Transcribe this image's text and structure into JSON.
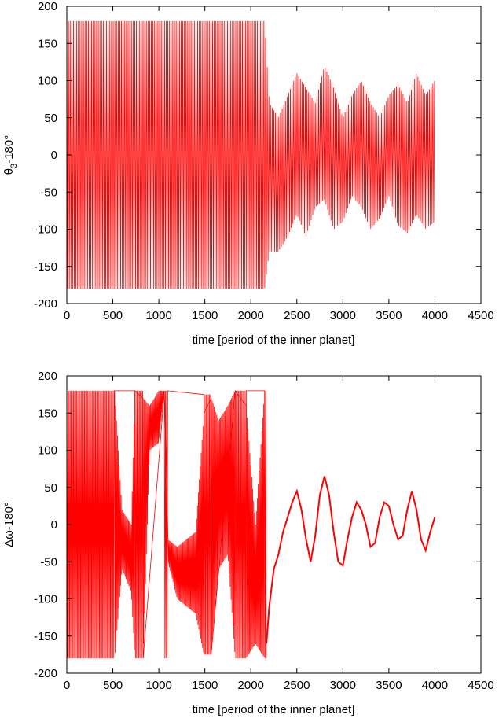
{
  "colors": {
    "series": "#ff0000",
    "axis": "#000000",
    "background": "#ffffff"
  },
  "chart_data": [
    {
      "type": "line",
      "title": "",
      "xlabel": "time [period of the inner planet]",
      "ylabel": {
        "base": "θ",
        "sub": "3",
        "rest": "-180°"
      },
      "xlim": [
        0,
        4500
      ],
      "ylim": [
        -200,
        200
      ],
      "grid": false,
      "legend": "none",
      "xticks": [
        "0",
        "500",
        "1000",
        "1500",
        "2000",
        "2500",
        "3000",
        "3500",
        "4000",
        "4500"
      ],
      "yticks": [
        "200",
        "150",
        "100",
        "50",
        "0",
        "-50",
        "-100",
        "-150",
        "-200"
      ],
      "series": [
        {
          "description_note": "circulating -180..180 until ~2150, then librating",
          "envelope_upper": {
            "x": [
              0,
              2100,
              2150,
              2200,
              2300,
              2400,
              2500,
              2600,
              2700,
              2800,
              2900,
              3000,
              3100,
              3200,
              3300,
              3400,
              3500,
              3600,
              3700,
              3800,
              3900,
              4000
            ],
            "y": [
              180,
              180,
              180,
              70,
              50,
              80,
              110,
              90,
              70,
              120,
              90,
              50,
              80,
              100,
              70,
              50,
              80,
              95,
              70,
              110,
              80,
              100
            ]
          },
          "envelope_lower": {
            "x": [
              0,
              2100,
              2150,
              2200,
              2300,
              2400,
              2500,
              2600,
              2700,
              2800,
              2900,
              3000,
              3100,
              3200,
              3300,
              3400,
              3500,
              3600,
              3700,
              3800,
              3900,
              4000
            ],
            "y": [
              -180,
              -180,
              -180,
              -130,
              -130,
              -110,
              -80,
              -110,
              -70,
              -60,
              -100,
              -90,
              -55,
              -70,
              -100,
              -85,
              -55,
              -95,
              -105,
              -80,
              -100,
              -90
            ]
          }
        }
      ]
    },
    {
      "type": "line",
      "title": "",
      "xlabel": "time [period of the inner planet]",
      "ylabel": {
        "base": "Δω",
        "sub": "",
        "rest": "-180°"
      },
      "xlim": [
        0,
        4500
      ],
      "ylim": [
        -200,
        200
      ],
      "grid": false,
      "legend": "none",
      "xticks": [
        "0",
        "500",
        "1000",
        "1500",
        "2000",
        "2500",
        "3000",
        "3500",
        "4000",
        "4500"
      ],
      "yticks": [
        "200",
        "150",
        "100",
        "50",
        "0",
        "-50",
        "-100",
        "-150",
        "-200"
      ],
      "series": [
        {
          "bands": [
            {
              "x0": 0,
              "x1": 520,
              "lo": -180,
              "hi": 180
            },
            {
              "x0": 740,
              "x1": 830,
              "lo": -180,
              "hi": 180
            },
            {
              "x0": 1060,
              "x1": 1100,
              "lo": -180,
              "hi": 180
            },
            {
              "x0": 1490,
              "x1": 1570,
              "lo": -175,
              "hi": 175
            },
            {
              "x0": 1830,
              "x1": 1950,
              "lo": -180,
              "hi": 180
            },
            {
              "x0": 2150,
              "x1": 2170,
              "lo": -180,
              "hi": 180
            }
          ],
          "envelope_upper": {
            "x": [
              520,
              600,
              700,
              740,
              830,
              900,
              1000,
              1060,
              1100,
              1200,
              1300,
              1400,
              1490,
              1570,
              1650,
              1750,
              1830,
              1950,
              2050,
              2150
            ],
            "y": [
              180,
              20,
              0,
              180,
              170,
              160,
              180,
              180,
              -20,
              -30,
              -20,
              -10,
              150,
              170,
              140,
              160,
              180,
              160,
              0,
              180
            ]
          },
          "envelope_lower": {
            "x": [
              520,
              600,
              700,
              740,
              830,
              900,
              1000,
              1060,
              1100,
              1200,
              1300,
              1400,
              1490,
              1570,
              1650,
              1750,
              1830,
              1950,
              2050,
              2150
            ],
            "y": [
              -180,
              -60,
              -90,
              -180,
              -180,
              100,
              110,
              180,
              -50,
              -100,
              -110,
              -120,
              -175,
              -175,
              -60,
              -40,
              -180,
              -180,
              -160,
              -180
            ]
          },
          "line": {
            "x": [
              2170,
              2200,
              2250,
              2300,
              2350,
              2400,
              2450,
              2500,
              2550,
              2600,
              2650,
              2700,
              2750,
              2800,
              2850,
              2900,
              2950,
              3000,
              3050,
              3100,
              3150,
              3200,
              3250,
              3300,
              3350,
              3400,
              3450,
              3500,
              3550,
              3600,
              3650,
              3700,
              3750,
              3800,
              3850,
              3900,
              3950,
              4000
            ],
            "y": [
              -160,
              -110,
              -60,
              -40,
              -10,
              10,
              30,
              45,
              20,
              -20,
              -50,
              -15,
              40,
              65,
              40,
              -10,
              -50,
              -55,
              -20,
              10,
              30,
              20,
              0,
              -30,
              -25,
              10,
              30,
              25,
              0,
              -20,
              -15,
              20,
              45,
              20,
              -20,
              -35,
              -10,
              10
            ]
          }
        }
      ]
    }
  ]
}
